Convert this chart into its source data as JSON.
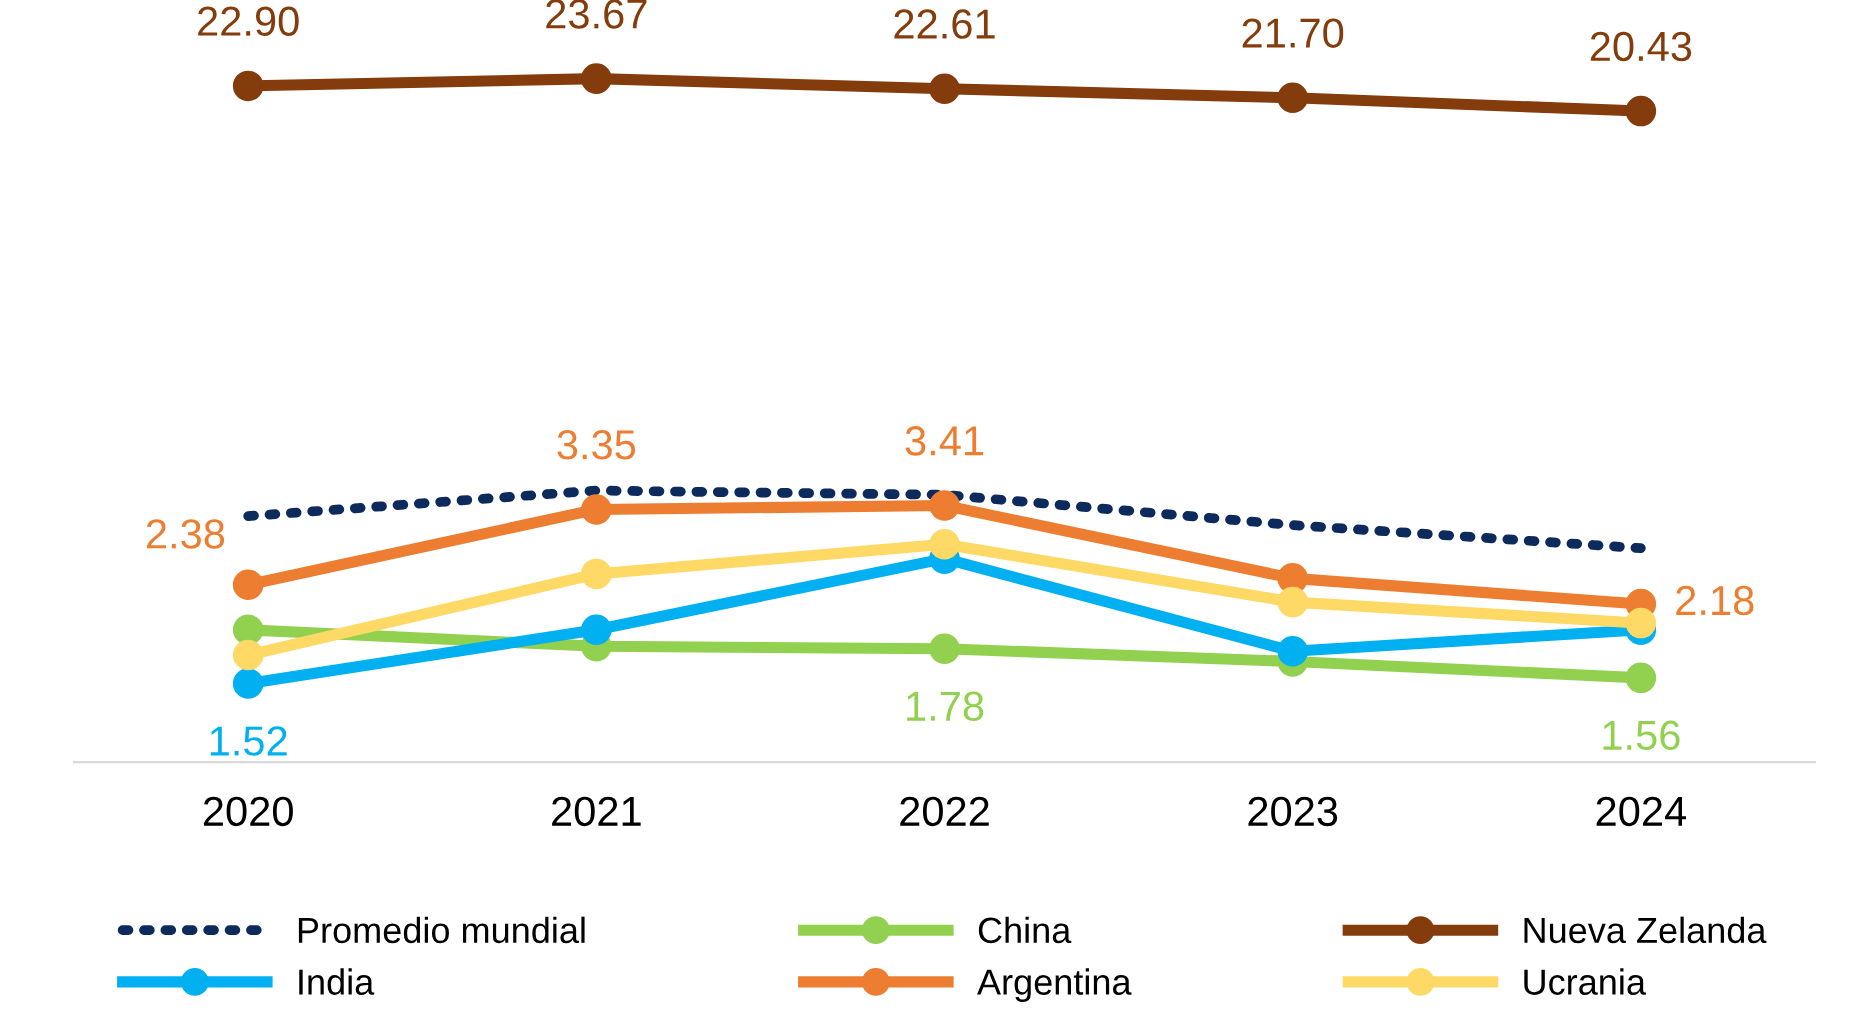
{
  "chart_data": {
    "type": "line",
    "categories": [
      "2020",
      "2021",
      "2022",
      "2023",
      "2024"
    ],
    "log": true,
    "tick_labels": "x",
    "grid": false,
    "legend": "bottom",
    "marker": "circle",
    "series": [
      {
        "name": "Promedio mundial",
        "color": "#0d2a5c",
        "line_style": "dotted",
        "marker": "none",
        "values": [
          3.25,
          3.65,
          3.58,
          3.12,
          2.81
        ]
      },
      {
        "name": "China",
        "color": "#92d050",
        "values": [
          1.94,
          1.8,
          1.78,
          1.68,
          1.56
        ],
        "value_labels": [
          null,
          null,
          "1.78",
          null,
          "1.56"
        ]
      },
      {
        "name": "Nueva Zelanda",
        "color": "#843c0c",
        "values": [
          22.9,
          23.67,
          22.61,
          21.7,
          20.43
        ],
        "value_labels": [
          "22.90",
          "23.67",
          "22.61",
          "21.70",
          "20.43"
        ]
      },
      {
        "name": "India",
        "color": "#00b0f0",
        "values": [
          1.52,
          1.94,
          2.68,
          1.76,
          1.94
        ],
        "value_labels": [
          "1.52",
          null,
          null,
          null,
          null
        ]
      },
      {
        "name": "Argentina",
        "color": "#ed7d31",
        "values": [
          2.38,
          3.35,
          3.41,
          2.45,
          2.18
        ],
        "value_labels": [
          "2.38",
          "3.35",
          "3.41",
          null,
          "2.18"
        ]
      },
      {
        "name": "Ucrania",
        "color": "#ffd966",
        "values": [
          1.73,
          2.5,
          2.86,
          2.2,
          2.0
        ]
      }
    ]
  }
}
